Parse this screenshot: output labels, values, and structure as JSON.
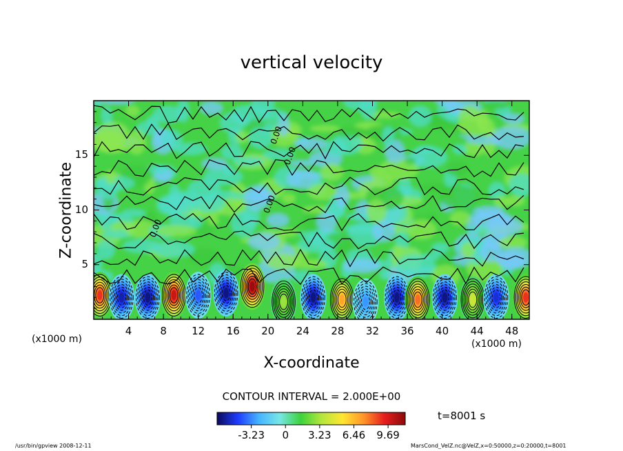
{
  "chart_data": {
    "type": "heatmap",
    "title": "vertical velocity",
    "xlabel": "X-coordinate",
    "ylabel": "Z-coordinate",
    "x_unit_left": "(x1000 m)",
    "x_unit_right": "(x1000 m)",
    "x_ticks": [
      "4",
      "8",
      "12",
      "16",
      "20",
      "24",
      "28",
      "32",
      "36",
      "40",
      "44",
      "48"
    ],
    "x_tick_values": [
      4,
      8,
      12,
      16,
      20,
      24,
      28,
      32,
      36,
      40,
      44,
      48
    ],
    "y_ticks": [
      "5",
      "10",
      "15"
    ],
    "y_tick_values": [
      5,
      10,
      15
    ],
    "xlim": [
      0,
      50
    ],
    "ylim": [
      0,
      20
    ],
    "contour_interval": "CONTOUR INTERVAL = 2.000E+00",
    "contour_labels": [
      "0.00",
      "0.00",
      "0.00",
      "0.00"
    ],
    "colorbar": {
      "tick_labels": [
        "-3.23",
        "0",
        "3.23",
        "6.46",
        "9.69"
      ],
      "tick_values": [
        -3.23,
        0,
        3.23,
        6.46,
        9.69
      ],
      "range": [
        -6.46,
        11.31
      ],
      "colors": [
        "#0a0a5a",
        "#1e3cff",
        "#46b4ff",
        "#78e6e6",
        "#3cd23c",
        "#b4e63c",
        "#ffe632",
        "#ff9628",
        "#e61e1e",
        "#8c0a0a"
      ]
    },
    "cells": [
      {
        "x": 0.7,
        "z": 2.2,
        "value": 9.0
      },
      {
        "x": 3.2,
        "z": 2.0,
        "value": -5.5
      },
      {
        "x": 6.2,
        "z": 2.0,
        "value": -6.0
      },
      {
        "x": 9.2,
        "z": 2.2,
        "value": 10.0
      },
      {
        "x": 12.0,
        "z": 2.2,
        "value": -4.0
      },
      {
        "x": 15.2,
        "z": 2.4,
        "value": -6.0
      },
      {
        "x": 18.2,
        "z": 3.0,
        "value": 11.0
      },
      {
        "x": 21.8,
        "z": 1.6,
        "value": 3.0
      },
      {
        "x": 25.2,
        "z": 2.0,
        "value": -6.0
      },
      {
        "x": 28.5,
        "z": 1.8,
        "value": 7.0
      },
      {
        "x": 31.2,
        "z": 1.6,
        "value": -3.0
      },
      {
        "x": 34.8,
        "z": 2.0,
        "value": -6.0
      },
      {
        "x": 37.2,
        "z": 1.8,
        "value": 8.0
      },
      {
        "x": 40.3,
        "z": 2.0,
        "value": -6.0
      },
      {
        "x": 43.5,
        "z": 1.8,
        "value": 4.0
      },
      {
        "x": 46.2,
        "z": 2.0,
        "value": -5.0
      },
      {
        "x": 49.6,
        "z": 2.0,
        "value": 9.0
      }
    ]
  },
  "time_label": "t=8001 s",
  "footer_left": "/usr/bin/gpview   2008-12-11",
  "footer_right": "MarsCond_VelZ.nc@VelZ,x=0:50000,z=0:20000,t=8001"
}
